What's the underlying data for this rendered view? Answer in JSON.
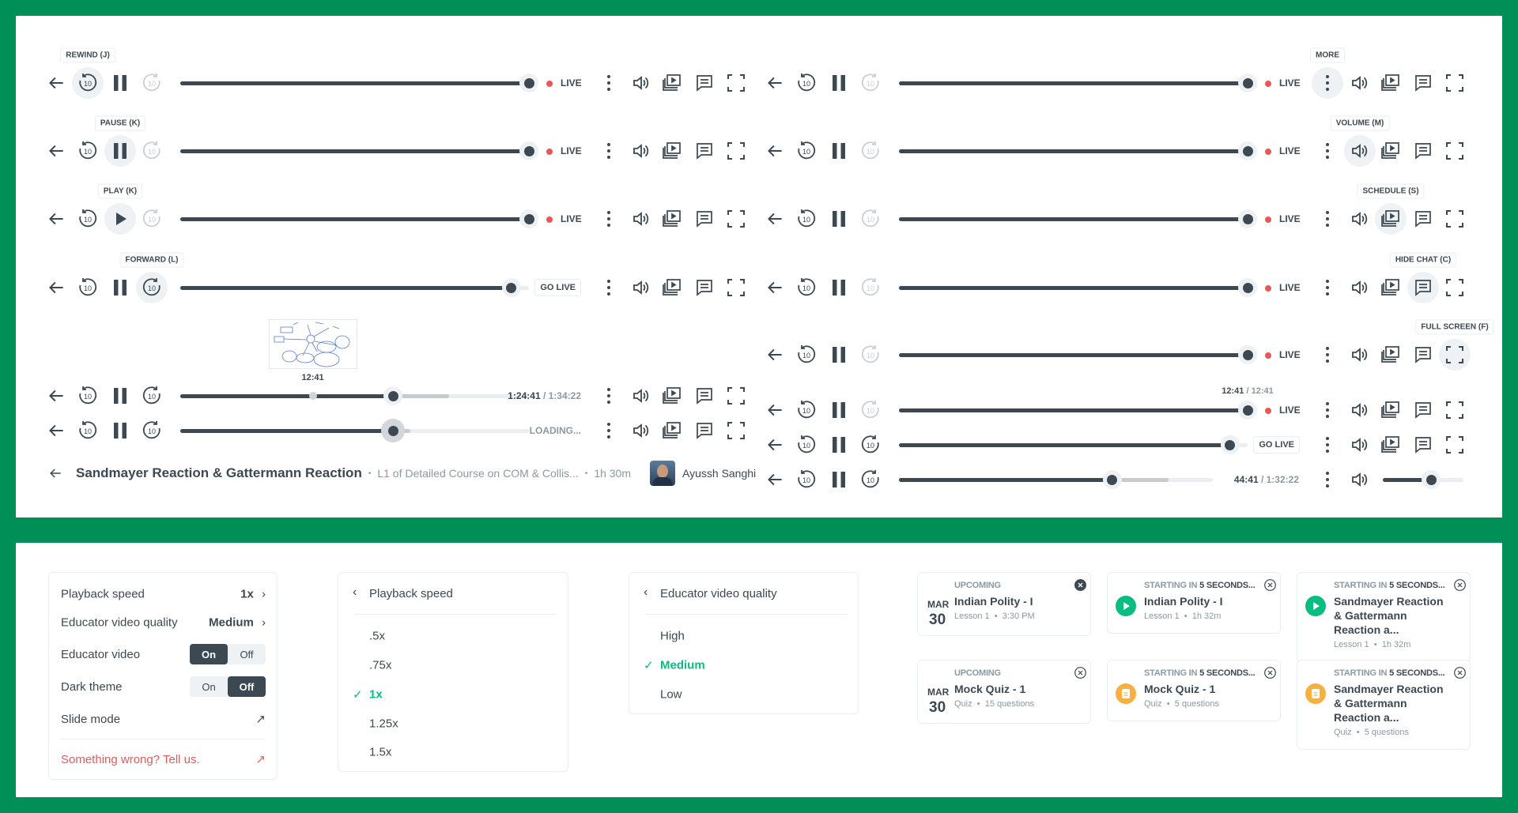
{
  "colors": {
    "frame": "#008f56",
    "text": "#3c4852",
    "live": "#eb5757",
    "accent": "#08bd80",
    "quiz": "#f7b040",
    "danger": "#e05d5d"
  },
  "player": {
    "skip_seconds": "10",
    "live_label": "LIVE",
    "go_live_label": "GO LIVE",
    "loading_label": "LOADING..."
  },
  "left_rows": [
    {
      "tooltip": "REWIND (J)",
      "active": "rewind",
      "state": "pause",
      "forward_enabled": false,
      "progress": 1,
      "buffered": 0,
      "status": "live"
    },
    {
      "tooltip": "PAUSE (K)",
      "active": "playpause",
      "state": "pause",
      "forward_enabled": false,
      "progress": 1,
      "buffered": 0,
      "status": "live"
    },
    {
      "tooltip": "PLAY (K)",
      "active": "playpause",
      "state": "play",
      "forward_enabled": false,
      "progress": 1,
      "buffered": 0,
      "status": "live"
    },
    {
      "tooltip": "FORWARD (L)",
      "active": "forward",
      "state": "pause",
      "forward_enabled": true,
      "progress": 0.95,
      "buffered": 0,
      "status": "golive"
    },
    {
      "tooltip": "",
      "active": "",
      "state": "pause",
      "forward_enabled": true,
      "progress": 0.61,
      "buffered": 0.77,
      "hover": 0.38,
      "preview_time": "12:41",
      "status": "time",
      "time_current": "1:24:41",
      "time_total": " / 1:34:22"
    },
    {
      "tooltip": "",
      "active": "",
      "state": "pause",
      "forward_enabled": true,
      "progress": 0.61,
      "buffered": 0.66,
      "dragging": true,
      "status": "loading"
    }
  ],
  "right_rows": [
    {
      "tooltip": "MORE",
      "active": "more",
      "state": "pause",
      "forward_enabled": false,
      "progress": 1,
      "buffered": 0,
      "status": "live"
    },
    {
      "tooltip": "VOLUME (M)",
      "active": "volume",
      "state": "pause",
      "forward_enabled": false,
      "progress": 1,
      "buffered": 0,
      "status": "live"
    },
    {
      "tooltip": "SCHEDULE (S)",
      "active": "schedule",
      "state": "pause",
      "forward_enabled": false,
      "progress": 1,
      "buffered": 0,
      "status": "live"
    },
    {
      "tooltip": "HIDE CHAT (C)",
      "active": "chat",
      "state": "pause",
      "forward_enabled": false,
      "progress": 1,
      "buffered": 0,
      "status": "live"
    },
    {
      "tooltip": "FULL SCREEN (F)",
      "active": "fullscreen",
      "state": "pause",
      "forward_enabled": false,
      "progress": 1,
      "buffered": 0,
      "status": "live"
    },
    {
      "tooltip": "",
      "active": "",
      "state": "pause",
      "forward_enabled": false,
      "progress": 1,
      "buffered": 0,
      "status": "live",
      "seek_time_current": "12:41",
      "seek_time_total": " / 12:41"
    },
    {
      "tooltip": "",
      "active": "",
      "state": "pause",
      "forward_enabled": true,
      "progress": 0.95,
      "buffered": 0,
      "status": "golive"
    },
    {
      "tooltip": "",
      "active": "",
      "state": "pause",
      "forward_enabled": true,
      "progress": 0.68,
      "buffered": 0.86,
      "status": "time",
      "time_current": "44:41",
      "time_total": " / 1:32:22",
      "compact": true,
      "volume_level": 0.6
    }
  ],
  "lesson": {
    "title": "Sandmayer Reaction & Gattermann Reaction",
    "course": "L1 of Detailed Course on COM & Collis...",
    "duration": "1h 30m",
    "educator": "Ayussh Sanghi",
    "separator": "•"
  },
  "settings": {
    "playback_speed_label": "Playback speed",
    "playback_speed_value": "1x",
    "quality_label": "Educator video quality",
    "quality_value": "Medium",
    "educator_video_label": "Educator video",
    "educator_video": "On",
    "dark_theme_label": "Dark theme",
    "dark_theme": "Off",
    "on_label": "On",
    "off_label": "Off",
    "slide_mode_label": "Slide mode",
    "report_label": "Something wrong? Tell us."
  },
  "speed_menu": {
    "title": "Playback speed",
    "options": [
      ".5x",
      ".75x",
      "1x",
      "1.25x",
      "1.5x"
    ],
    "selected": "1x"
  },
  "quality_menu": {
    "title": "Educator video quality",
    "options": [
      "High",
      "Medium",
      "Low"
    ],
    "selected": "Medium"
  },
  "notifications": [
    {
      "type": "upcoming",
      "label": "UPCOMING",
      "title": "Indian Polity - I",
      "month": "MAR",
      "day": "30",
      "meta_a": "Lesson 1",
      "meta_b": "3:30 PM",
      "close_filled": true
    },
    {
      "type": "lesson",
      "label": "STARTING IN ",
      "label_bold": "5 SECONDS...",
      "title": "Indian Polity - I",
      "meta_a": "Lesson 1",
      "meta_b": "1h 32m"
    },
    {
      "type": "lesson",
      "label": "STARTING IN ",
      "label_bold": "5 SECONDS...",
      "title": "Sandmayer Reaction & Gattermann Reaction a...",
      "meta_a": "Lesson 1",
      "meta_b": "1h 32m",
      "two_line": true
    },
    {
      "type": "upcoming",
      "label": "UPCOMING",
      "title": "Mock Quiz - 1",
      "month": "MAR",
      "day": "30",
      "meta_a": "Quiz",
      "meta_b": "15 questions"
    },
    {
      "type": "quiz",
      "label": "STARTING IN ",
      "label_bold": "5 SECONDS...",
      "title": "Mock Quiz - 1",
      "meta_a": "Quiz",
      "meta_b": "5 questions"
    },
    {
      "type": "quiz",
      "label": "STARTING IN ",
      "label_bold": "5 SECONDS...",
      "title": "Sandmayer Reaction & Gattermann Reaction a...",
      "meta_a": "Quiz",
      "meta_b": "5 questions",
      "two_line": true
    }
  ]
}
